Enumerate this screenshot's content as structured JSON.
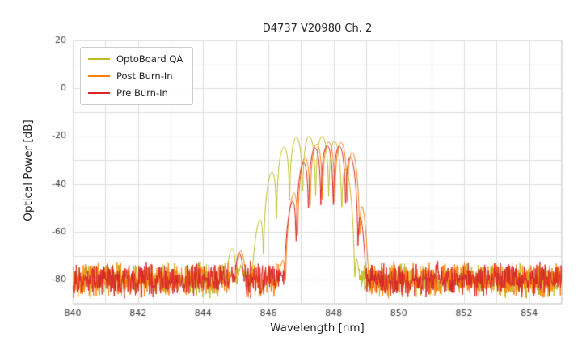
{
  "chart_data": {
    "type": "line",
    "title": "D4737 V20980 Ch. 2",
    "xlabel": "Wavelength [nm]",
    "ylabel": "Optical Power [dB]",
    "xlim": [
      840,
      855
    ],
    "ylim": [
      -90,
      20
    ],
    "xticks": [
      840,
      842,
      844,
      846,
      848,
      850,
      852,
      854
    ],
    "yticks": [
      20,
      0,
      -20,
      -40,
      -60,
      -80
    ],
    "x_minor_step": 1,
    "y_minor_step": 10,
    "grid": true,
    "grid_color": "#dddddd",
    "legend_position": "upper left",
    "series": [
      {
        "name": "OptoBoard QA",
        "color": "#bcbd22",
        "seed": 7,
        "noise_floor": -80,
        "noise_amp": 8,
        "center": 847.25,
        "peak": -20,
        "hw_left": 1.85,
        "hw_right": 1.55,
        "p_left": 3,
        "p_right": 5,
        "edge_drop": 60,
        "mode_spacing": 0.4,
        "mode_dip_db": 25,
        "shoulder": {
          "center": 844.95,
          "peak": -66,
          "hw": 0.45
        }
      },
      {
        "name": "Post Burn-In",
        "color": "#ff7f0e",
        "seed": 13,
        "noise_floor": -80,
        "noise_amp": 8,
        "center": 847.85,
        "peak": -22.5,
        "hw_left": 1.55,
        "hw_right": 1.25,
        "p_left": 3,
        "p_right": 5,
        "edge_drop": 60,
        "mode_spacing": 0.38,
        "mode_dip_db": 25,
        "shoulder": {
          "center": 845.1,
          "peak": -67,
          "hw": 0.4
        }
      },
      {
        "name": "Pre Burn-In",
        "color": "#d62728",
        "seed": 29,
        "noise_floor": -80,
        "noise_amp": 8,
        "center": 847.8,
        "peak": -24,
        "hw_left": 1.5,
        "hw_right": 1.22,
        "p_left": 3,
        "p_right": 5,
        "edge_drop": 60,
        "mode_spacing": 0.38,
        "mode_dip_db": 25,
        "shoulder": {
          "center": 845.05,
          "peak": -68,
          "hw": 0.4
        }
      }
    ]
  }
}
